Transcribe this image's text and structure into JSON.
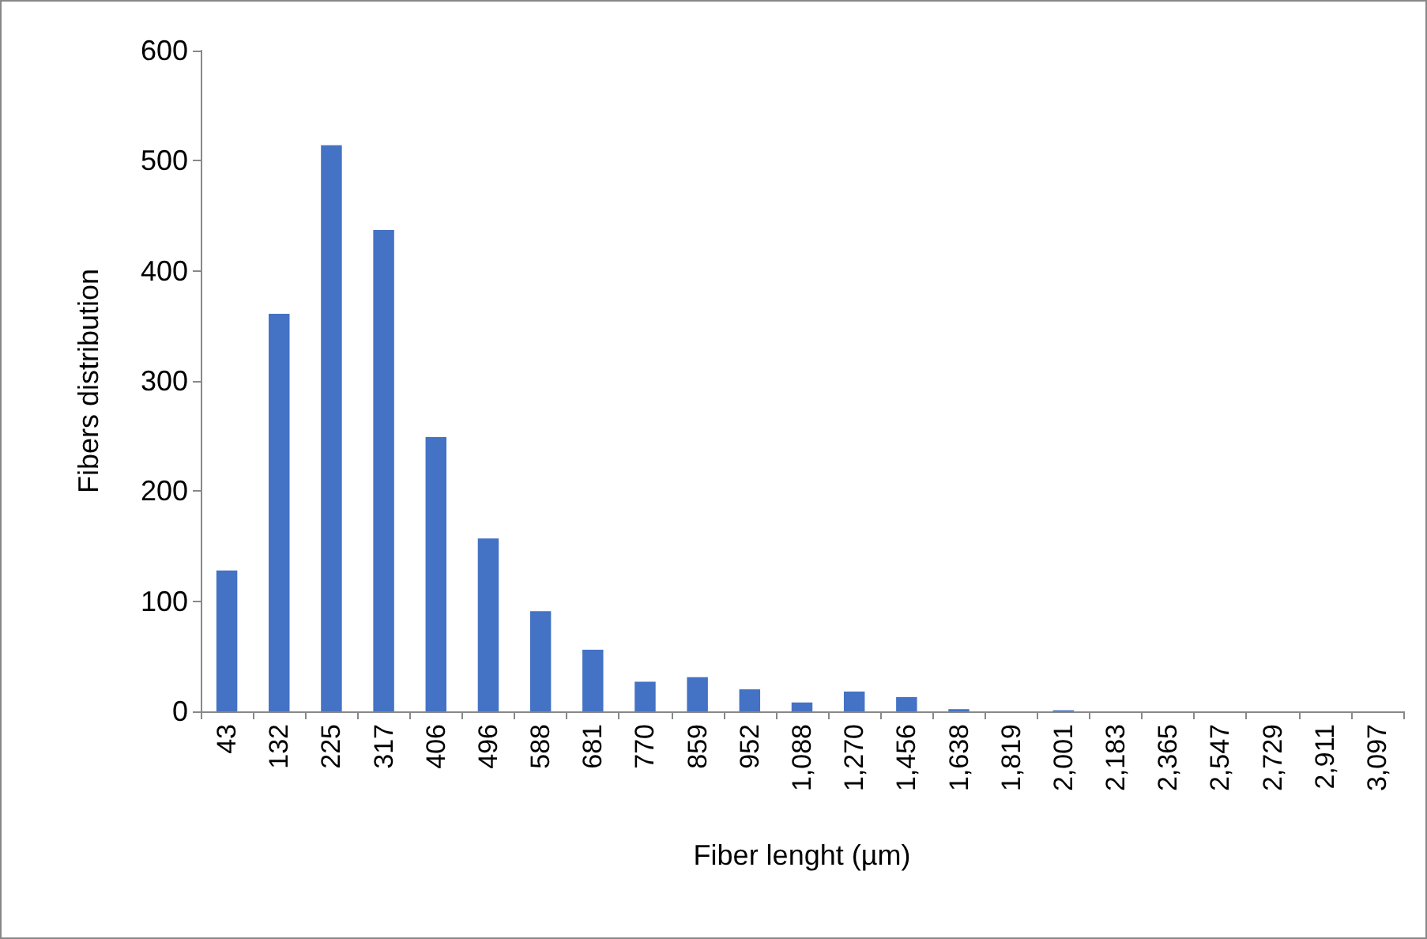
{
  "chart_data": {
    "type": "bar",
    "xlabel": "Fiber lenght (µm)",
    "ylabel": "Fibers distribution",
    "categories": [
      "43",
      "132",
      "225",
      "317",
      "406",
      "496",
      "588",
      "681",
      "770",
      "859",
      "952",
      "1,088",
      "1,270",
      "1,456",
      "1,638",
      "1,819",
      "2,001",
      "2,183",
      "2,365",
      "2,547",
      "2,729",
      "2,911",
      "3,097"
    ],
    "values": [
      128,
      361,
      514,
      437,
      249,
      157,
      91,
      56,
      27,
      31,
      20,
      8,
      18,
      13,
      2,
      0,
      1,
      0,
      0,
      0,
      0,
      0,
      0
    ],
    "color": "#4472c4",
    "ylim": [
      0,
      600
    ],
    "yticks": [
      0,
      100,
      200,
      300,
      400,
      500,
      600
    ],
    "grid": false
  }
}
